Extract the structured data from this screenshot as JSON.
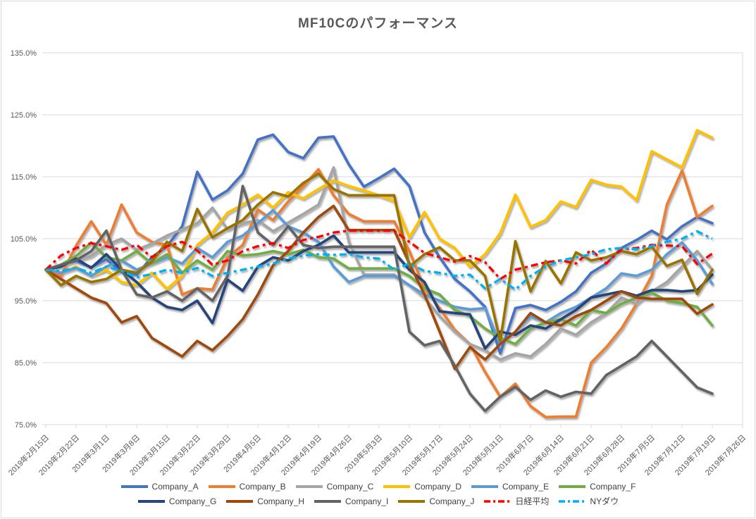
{
  "title": "MF10Cのパフォーマンス",
  "colors": {
    "title_text": "#595959",
    "axis_text": "#595959",
    "legend_text": "#404040",
    "gridline": "#D9D9D9",
    "frame_border": "#D9D9D9",
    "background": "#FFFFFF"
  },
  "chart_data": {
    "type": "line",
    "title": "MF10Cのパフォーマンス",
    "legend_position": "bottom",
    "grid": "horizontal",
    "points_per_week": 2,
    "y_axis": {
      "min": 75,
      "max": 135,
      "step": 10,
      "unit": "%",
      "tick_labels": [
        "135.0%",
        "125.0%",
        "115.0%",
        "105.0%",
        "95.0%",
        "85.0%",
        "75.0%"
      ]
    },
    "x_tick_labels": [
      "2019年2月15日",
      "2019年2月22日",
      "2019年3月1日",
      "2019年3月8日",
      "2019年3月15日",
      "2019年3月22日",
      "2019年3月29日",
      "2019年4月5日",
      "2019年4月12日",
      "2019年4月19日",
      "2019年4月26日",
      "2019年5月3日",
      "2019年5月10日",
      "2019年5月17日",
      "2019年5月24日",
      "2019年5月31日",
      "2019年6月7日",
      "2019年6月14日",
      "2019年6月21日",
      "2019年6月28日",
      "2019年7月5日",
      "2019年7月12日",
      "2019年7月19日",
      "2019年7月26日"
    ],
    "series": [
      {
        "name": "Company_A",
        "key": "company-a",
        "color": "#4472C4",
        "dash": false,
        "values": [
          100,
          100.7,
          101.4,
          100.4,
          101.7,
          99.6,
          99.2,
          102,
          103.8,
          107,
          115.8,
          111.3,
          112.8,
          115.5,
          121,
          121.8,
          119,
          118,
          121.3,
          121.5,
          117,
          113.4,
          114.8,
          116.3,
          113.5,
          106,
          102,
          98.5,
          96.5,
          94,
          86.5,
          93.8,
          94.3,
          93.5,
          94.8,
          96.5,
          99.5,
          101,
          103.5,
          104.8,
          106.3,
          104.9,
          107,
          108.5,
          107.5
        ]
      },
      {
        "name": "Company_B",
        "key": "company-b",
        "color": "#ED7D31",
        "dash": false,
        "values": [
          100,
          99,
          103.9,
          107.8,
          104,
          110.5,
          106,
          104.5,
          104,
          96,
          97,
          96.8,
          102,
          104,
          109.7,
          108,
          111,
          113.5,
          116.2,
          112,
          109,
          107.8,
          107.8,
          107.8,
          103,
          97,
          93.8,
          90.3,
          88,
          83.5,
          79.5,
          81.6,
          78,
          76.2,
          76.3,
          76.3,
          85,
          87.5,
          90.5,
          94.5,
          99,
          110.5,
          116,
          108.5,
          110.3
        ]
      },
      {
        "name": "Company_C",
        "key": "company-c",
        "color": "#A5A5A5",
        "dash": false,
        "values": [
          100,
          100.6,
          101.5,
          102.2,
          104,
          105,
          103.2,
          104.2,
          105.5,
          106.5,
          107.5,
          110,
          106.5,
          107.5,
          108,
          106.2,
          107.6,
          109,
          110.5,
          116.5,
          104.5,
          99.2,
          99.2,
          99.2,
          97.5,
          95.5,
          92.5,
          90,
          88,
          87,
          85.5,
          86.5,
          86,
          88,
          90.5,
          89.5,
          91.5,
          93,
          95.5,
          94.5,
          96.5,
          98,
          100.5,
          103,
          100
        ]
      },
      {
        "name": "Company_D",
        "key": "company-d",
        "color": "#FFC000",
        "dash": false,
        "values": [
          100,
          99.5,
          100.5,
          99,
          100,
          98,
          97.5,
          99.5,
          96.9,
          99,
          104,
          106,
          109.2,
          110.5,
          112.1,
          110,
          112.5,
          111.5,
          113,
          114.4,
          113.5,
          112.8,
          112,
          111.1,
          105.2,
          109.3,
          105,
          103.5,
          100.5,
          102.5,
          105.9,
          112.1,
          106.9,
          108,
          111,
          110.1,
          114.5,
          113.7,
          113.4,
          111.2,
          119.1,
          117.8,
          116.5,
          122.5,
          121.3
        ]
      },
      {
        "name": "Company_E",
        "key": "company-e",
        "color": "#5B9BD5",
        "dash": false,
        "values": [
          100,
          99.5,
          100.3,
          99,
          100.5,
          101.5,
          100,
          101,
          102,
          101,
          103.5,
          102,
          104.5,
          105.5,
          107.5,
          109.6,
          107,
          106,
          104.5,
          100.5,
          98,
          99,
          99,
          99,
          97.5,
          96,
          95,
          94,
          93.6,
          93.8,
          88,
          90,
          92.5,
          91.5,
          93,
          94,
          95.5,
          97,
          99.4,
          99,
          100,
          102.5,
          104.4,
          101.5,
          97.7
        ]
      },
      {
        "name": "Company_F",
        "key": "company-f",
        "color": "#70AD47",
        "dash": false,
        "values": [
          100,
          100.8,
          102.2,
          104.4,
          102,
          101.5,
          103,
          101,
          102.5,
          99.5,
          101.5,
          100,
          103,
          102.3,
          102.5,
          103,
          102.5,
          103.2,
          102,
          101.8,
          100.2,
          100.2,
          100.2,
          100.2,
          99,
          97,
          96,
          93.5,
          92.5,
          90.5,
          89,
          88,
          90.5,
          91.5,
          92,
          91,
          93.5,
          93,
          94.5,
          95.5,
          96.3,
          95,
          94.6,
          94,
          91
        ]
      },
      {
        "name": "Company_G",
        "key": "company-g",
        "color": "#264478",
        "dash": false,
        "values": [
          100,
          100.5,
          101.8,
          100.3,
          102.5,
          100,
          98,
          95.5,
          94,
          93.5,
          95,
          91.4,
          98.4,
          96.6,
          100.5,
          102,
          101.5,
          103,
          104,
          105.5,
          102.8,
          102.8,
          102.8,
          102.8,
          100,
          98,
          93.3,
          93,
          92.8,
          87.3,
          90,
          89.5,
          91,
          90.5,
          92,
          93.5,
          95.5,
          96,
          96.5,
          95.8,
          96.7,
          96.7,
          96.5,
          96.7,
          99.2
        ]
      },
      {
        "name": "Company_H",
        "key": "company-h",
        "color": "#9E480E",
        "dash": false,
        "values": [
          100,
          98.5,
          97,
          95.5,
          94.6,
          91.5,
          92.5,
          89,
          87.5,
          86,
          88.5,
          87,
          89.3,
          92,
          96,
          100.7,
          103,
          106,
          108.5,
          110.3,
          106.4,
          106.4,
          106.4,
          106.4,
          101,
          96,
          90,
          84,
          87.5,
          85.5,
          88,
          90,
          93,
          91.5,
          91,
          92.5,
          93.5,
          95,
          96.5,
          95.5,
          95.3,
          95.3,
          95.3,
          92.9,
          94.4
        ]
      },
      {
        "name": "Company_I",
        "key": "company-i",
        "color": "#636363",
        "dash": false,
        "values": [
          100,
          100.8,
          101.5,
          103,
          106.3,
          100,
          96,
          95.5,
          96.5,
          95,
          97,
          95,
          99,
          113.5,
          106,
          104,
          107,
          104,
          103.5,
          103.7,
          103.7,
          103.7,
          103.7,
          103.7,
          90,
          87.8,
          88.5,
          84.5,
          80,
          77.2,
          79.5,
          81.1,
          79,
          80.5,
          79.5,
          80.3,
          80,
          83,
          84.5,
          86,
          88.5,
          86,
          83.5,
          81,
          80
        ]
      },
      {
        "name": "Company_J",
        "key": "company-j",
        "color": "#997300",
        "dash": false,
        "values": [
          100,
          97.5,
          99,
          98,
          98.5,
          100,
          99.5,
          101.3,
          104.5,
          103,
          109.8,
          105.2,
          106.7,
          108,
          110.5,
          112.5,
          111.8,
          114,
          115.5,
          113,
          112,
          112,
          112,
          112,
          100.5,
          102.5,
          103.6,
          101.5,
          101.5,
          99,
          88.5,
          104.6,
          96.5,
          101.4,
          97.8,
          102.8,
          101.5,
          102,
          103,
          102.5,
          103.7,
          100.6,
          101.6,
          96.1,
          100
        ]
      },
      {
        "name": "日経平均",
        "key": "nikkei",
        "color": "#FF0000",
        "dash": true,
        "values": [
          100,
          102.3,
          103.5,
          104.3,
          103.8,
          103.2,
          104,
          102,
          103.8,
          104.5,
          103.1,
          100.8,
          101.5,
          103,
          103.8,
          104.3,
          103.5,
          104.8,
          105.3,
          106,
          106.3,
          106.3,
          106.3,
          106.3,
          104.5,
          102.7,
          102,
          101.3,
          102.2,
          101.2,
          98.5,
          100,
          100.6,
          101.2,
          101.5,
          101,
          103.2,
          101,
          103.3,
          103.5,
          104,
          103.9,
          103.8,
          100.9,
          102.6
        ]
      },
      {
        "name": "NYダウ",
        "key": "ny-dow",
        "color": "#00B0F0",
        "dash": true,
        "values": [
          100,
          99.8,
          100.3,
          99.5,
          100.5,
          99.8,
          98.8,
          99.3,
          100,
          99.5,
          100.3,
          99,
          99.5,
          100,
          100.5,
          101,
          101.8,
          102.3,
          102.5,
          102.4,
          102.5,
          102,
          101.8,
          100,
          101,
          99.8,
          99.5,
          99,
          99.2,
          97,
          98.5,
          96.8,
          99,
          100.5,
          101.5,
          102,
          102.5,
          103.3,
          103.5,
          103.3,
          103.8,
          104.5,
          105,
          106.2,
          105
        ]
      }
    ]
  }
}
